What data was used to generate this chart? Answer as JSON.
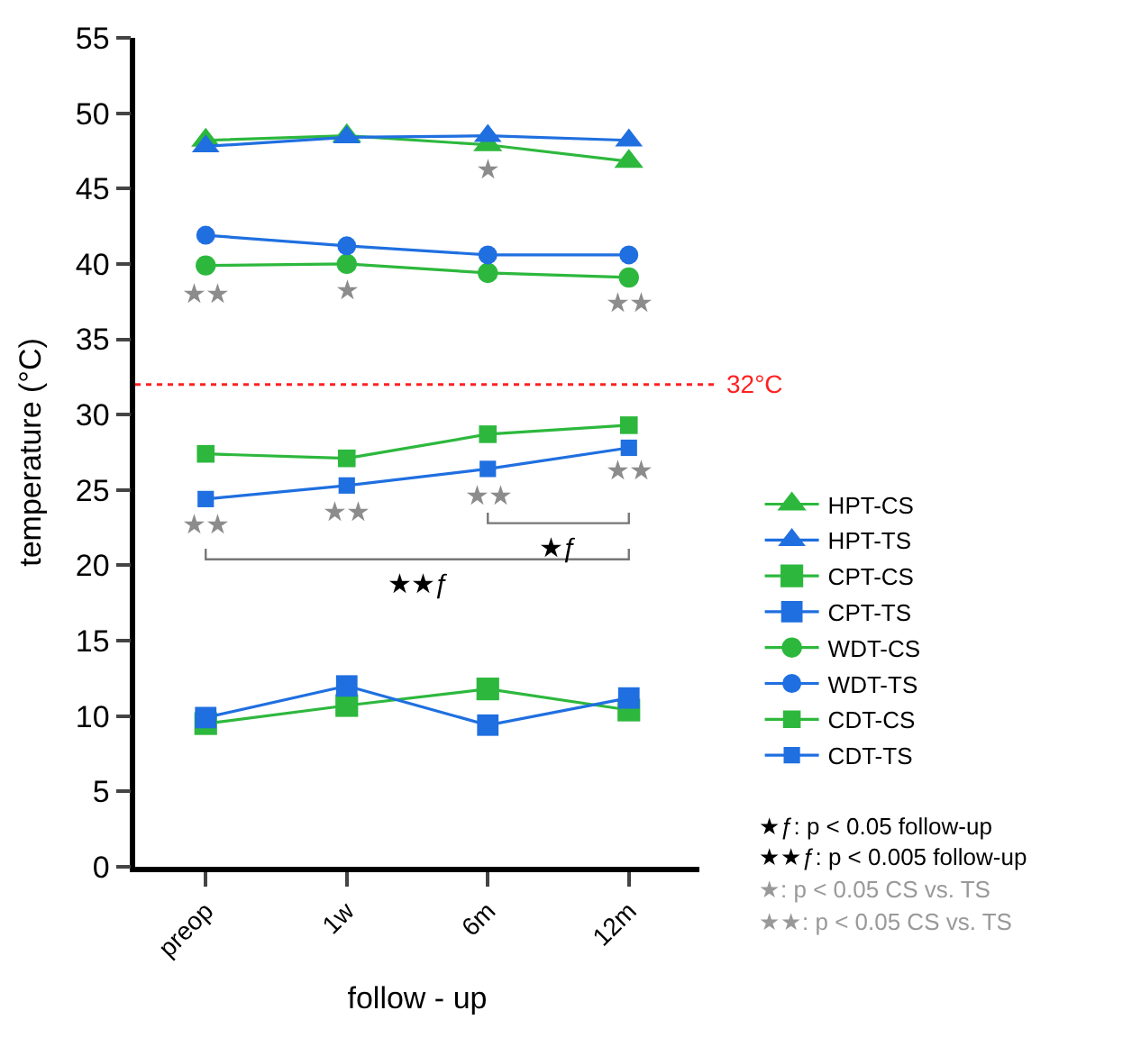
{
  "chart_data": {
    "type": "line",
    "xlabel": "follow - up",
    "ylabel": "temperature (°C)",
    "categories": [
      "preop",
      "1w",
      "6m",
      "12m"
    ],
    "ylim": [
      0,
      55
    ],
    "yticks": [
      0,
      5,
      10,
      15,
      20,
      25,
      30,
      35,
      40,
      45,
      50,
      55
    ],
    "legend": "right",
    "series": [
      {
        "name": "HPT-CS",
        "color": "#2db83d",
        "marker": "triangle",
        "values": [
          48.2,
          48.5,
          47.9,
          46.8
        ]
      },
      {
        "name": "HPT-TS",
        "color": "#1f6fe0",
        "marker": "triangle",
        "values": [
          47.8,
          48.4,
          48.5,
          48.2
        ]
      },
      {
        "name": "CPT-CS",
        "color": "#2db83d",
        "marker": "square",
        "values": [
          9.5,
          10.7,
          11.8,
          10.4
        ]
      },
      {
        "name": "CPT-TS",
        "color": "#1f6fe0",
        "marker": "square",
        "values": [
          9.9,
          12.0,
          9.4,
          11.2
        ]
      },
      {
        "name": "WDT-CS",
        "color": "#2db83d",
        "marker": "circle",
        "values": [
          39.9,
          40.0,
          39.4,
          39.1
        ]
      },
      {
        "name": "WDT-TS",
        "color": "#1f6fe0",
        "marker": "circle",
        "values": [
          41.9,
          41.2,
          40.6,
          40.6
        ]
      },
      {
        "name": "CDT-CS",
        "color": "#2db83d",
        "marker": "square",
        "values": [
          27.4,
          27.1,
          28.7,
          29.3
        ]
      },
      {
        "name": "CDT-TS",
        "color": "#1f6fe0",
        "marker": "square",
        "values": [
          24.4,
          25.3,
          26.4,
          27.8
        ]
      }
    ],
    "ref_lines": [
      {
        "axis": "y",
        "value": 32,
        "label": "32°C",
        "color": "#ff2020",
        "line_style": "dotted"
      }
    ],
    "annotations": [
      "★★",
      "★",
      "★",
      "★★",
      "★★",
      "★★",
      "★★",
      "★★",
      "★ƒ",
      "★★ƒ",
      "★ƒ: p < 0.05 follow-up",
      "★★ƒ: p < 0.005 follow-up",
      "★: p < 0.05 CS vs. TS",
      "★★: p < 0.05 CS vs. TS"
    ]
  }
}
